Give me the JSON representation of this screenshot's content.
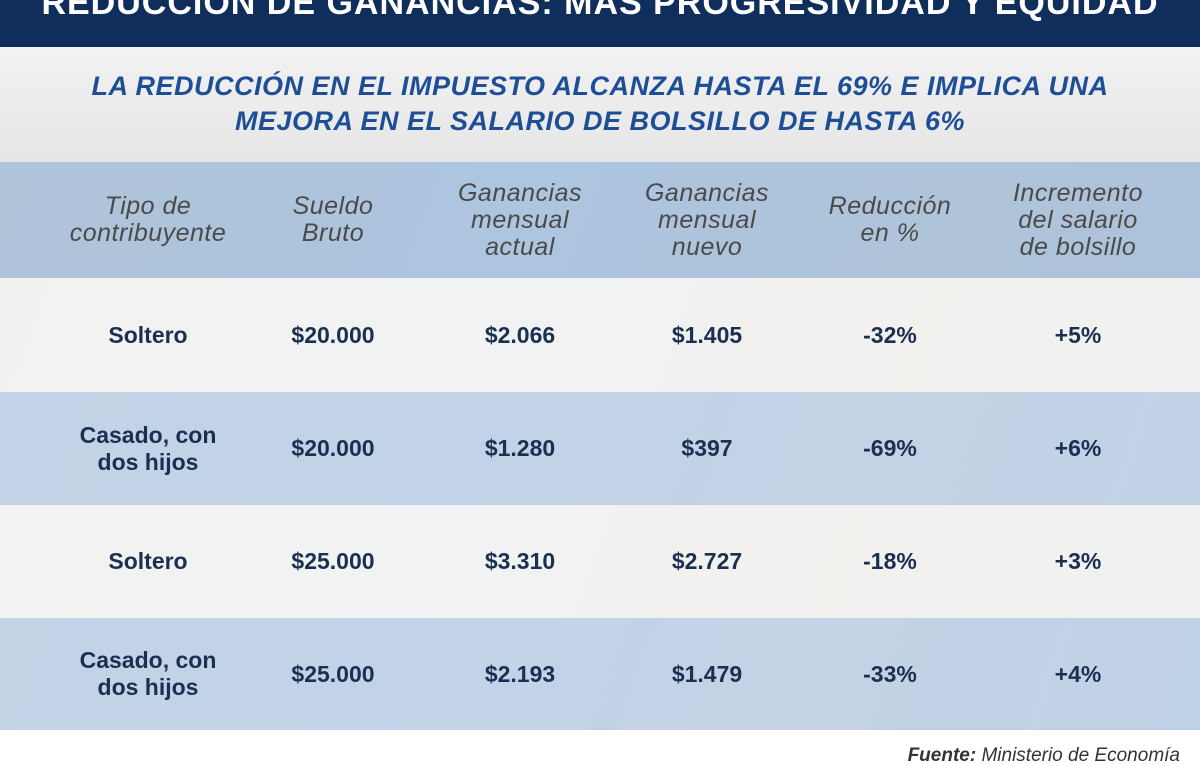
{
  "header": {
    "title": "REDUCCIÓN DE GANANCIAS: MÁS PROGRESIVIDAD Y EQUIDAD",
    "subtitle": "LA REDUCCIÓN EN EL IMPUESTO ALCANZA HASTA EL 69% E IMPLICA UNA\nMEJORA EN EL SALARIO DE BOLSILLO DE HASTA 6%"
  },
  "table": {
    "headers": [
      "Tipo de\ncontribuyente",
      "Sueldo\nBruto",
      "Ganancias\nmensual\nactual",
      "Ganancias\nmensual\nnuevo",
      "Reducción\nen %",
      "Incremento\ndel salario\nde bolsillo"
    ],
    "rows": [
      [
        "Soltero",
        "$20.000",
        "$2.066",
        "$1.405",
        "-32%",
        "+5%"
      ],
      [
        "Casado, con\ndos hijos",
        "$20.000",
        "$1.280",
        "$397",
        "-69%",
        "+6%"
      ],
      [
        "Soltero",
        "$25.000",
        "$3.310",
        "$2.727",
        "-18%",
        "+3%"
      ],
      [
        "Casado, con\ndos hijos",
        "$25.000",
        "$2.193",
        "$1.479",
        "-33%",
        "+4%"
      ]
    ]
  },
  "source": {
    "label": "Fuente:",
    "text": "Ministerio de Economía"
  }
}
